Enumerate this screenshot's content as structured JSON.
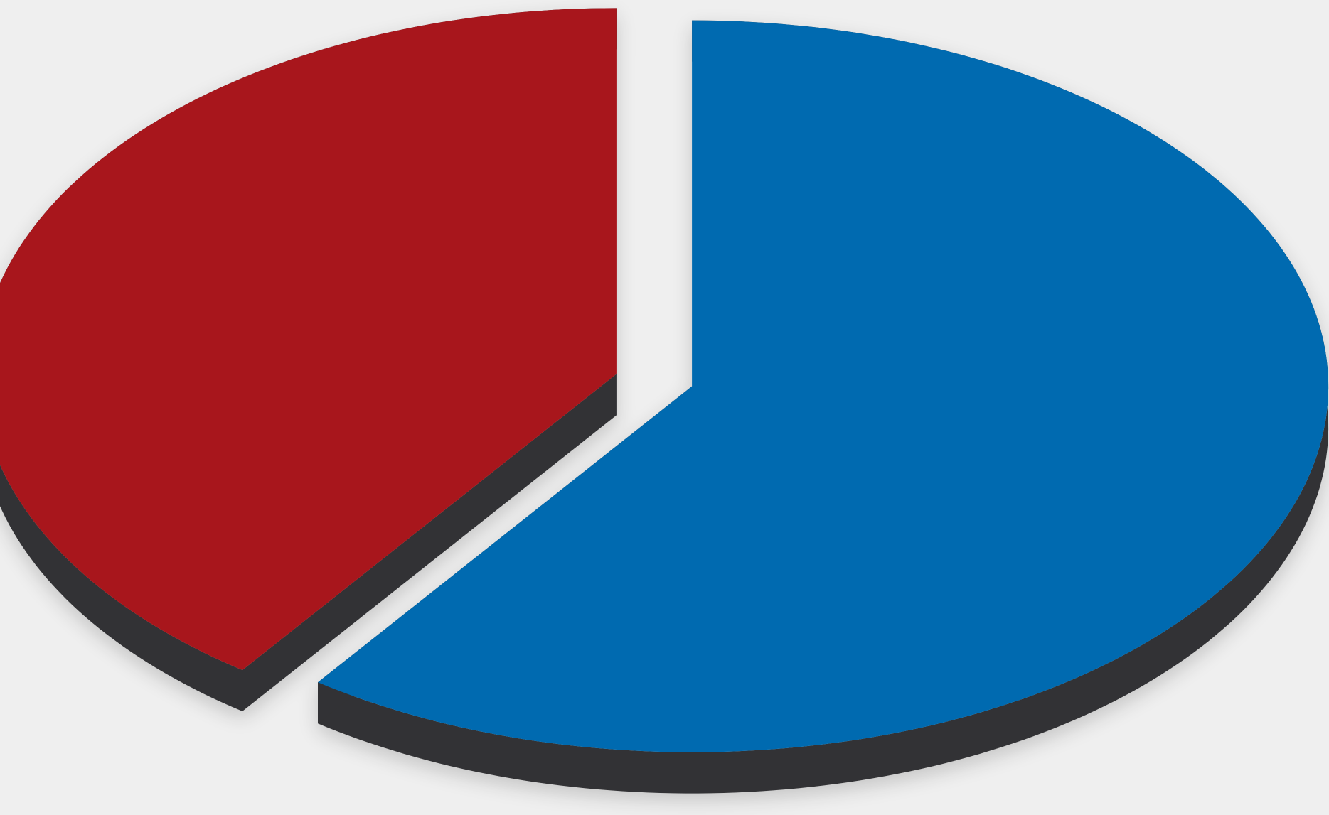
{
  "chart_data": {
    "type": "pie",
    "style": "3d-exploded",
    "slices": [
      {
        "value": 40,
        "color": "#a8151b"
      },
      {
        "value": 60,
        "color": "#006bb0"
      }
    ],
    "side_color": "#323234",
    "background": "#efefef",
    "legend": false,
    "labels_shown": false
  }
}
